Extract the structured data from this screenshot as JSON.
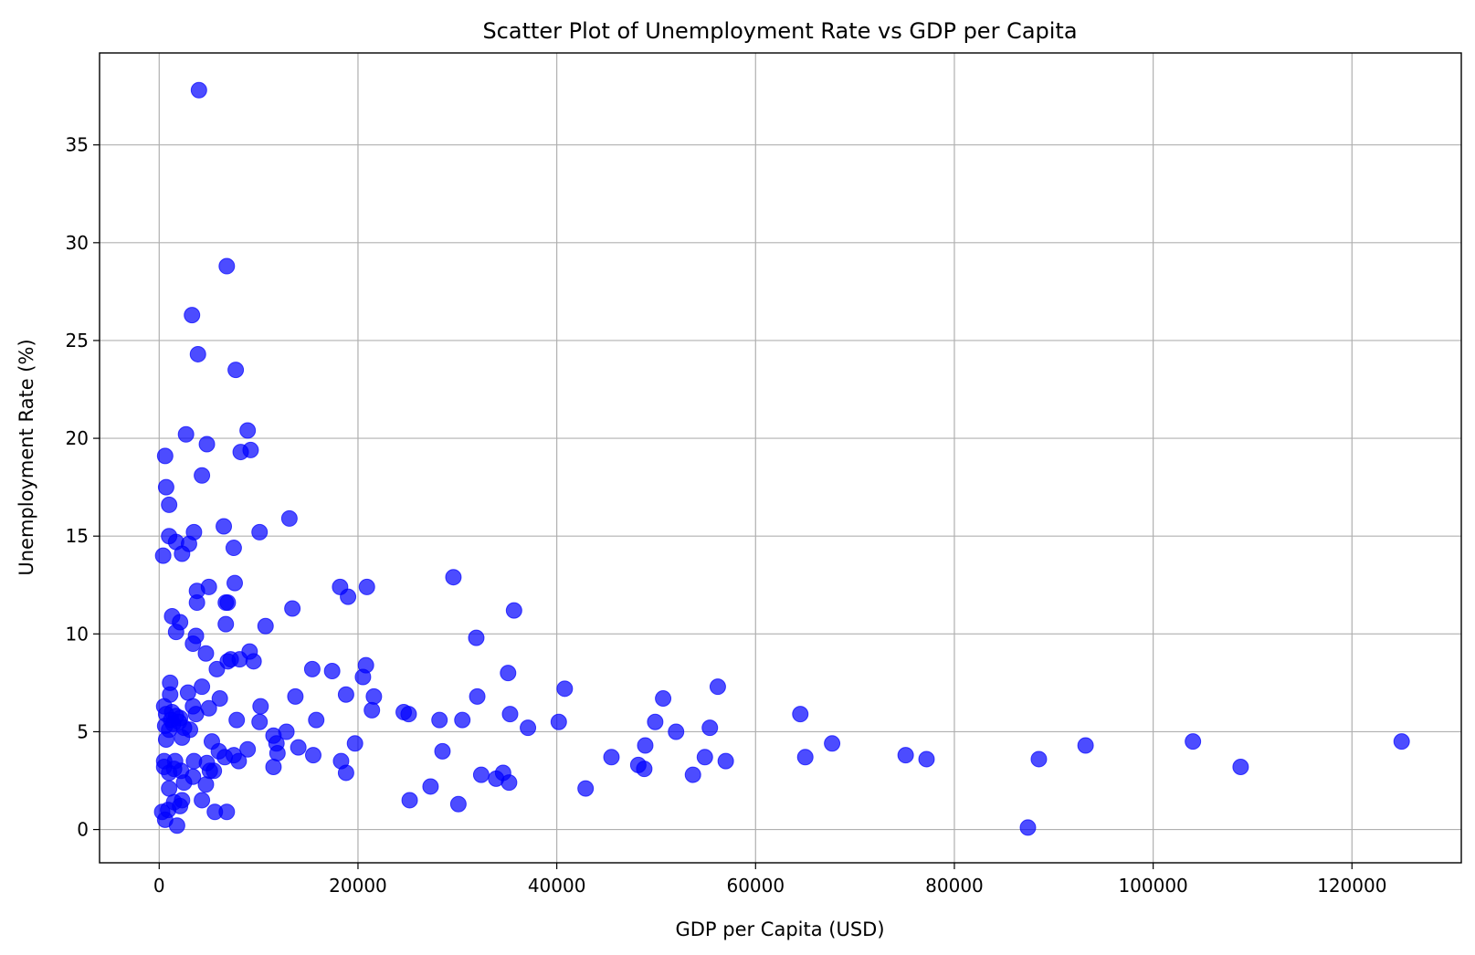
{
  "chart_data": {
    "type": "scatter",
    "title": "Scatter Plot of Unemployment Rate vs GDP per Capita",
    "xlabel": "GDP per Capita (USD)",
    "ylabel": "Unemployment Rate (%)",
    "xlim": [
      -6000,
      131000
    ],
    "ylim": [
      -1.7,
      39.7
    ],
    "x_ticks": [
      0,
      20000,
      40000,
      60000,
      80000,
      100000,
      120000
    ],
    "x_tick_labels": [
      "0",
      "20000",
      "40000",
      "60000",
      "80000",
      "100000",
      "120000"
    ],
    "y_ticks": [
      0,
      5,
      10,
      15,
      20,
      25,
      30,
      35
    ],
    "y_tick_labels": [
      "0",
      "5",
      "10",
      "15",
      "20",
      "25",
      "30",
      "35"
    ],
    "grid": true,
    "marker_color": "#0000ff",
    "marker_alpha": 0.7,
    "points": [
      [
        4000,
        37.8
      ],
      [
        6800,
        28.8
      ],
      [
        3300,
        26.3
      ],
      [
        3900,
        24.3
      ],
      [
        7700,
        23.5
      ],
      [
        8900,
        20.4
      ],
      [
        2700,
        20.2
      ],
      [
        4800,
        19.7
      ],
      [
        9200,
        19.4
      ],
      [
        8200,
        19.3
      ],
      [
        600,
        19.1
      ],
      [
        4300,
        18.1
      ],
      [
        700,
        17.5
      ],
      [
        1000,
        16.6
      ],
      [
        13100,
        15.9
      ],
      [
        6500,
        15.5
      ],
      [
        3500,
        15.2
      ],
      [
        10100,
        15.2
      ],
      [
        1000,
        15.0
      ],
      [
        1700,
        14.7
      ],
      [
        3000,
        14.6
      ],
      [
        7500,
        14.4
      ],
      [
        400,
        14.0
      ],
      [
        2300,
        14.1
      ],
      [
        7600,
        12.6
      ],
      [
        5000,
        12.4
      ],
      [
        18200,
        12.4
      ],
      [
        20900,
        12.4
      ],
      [
        3800,
        12.2
      ],
      [
        29600,
        12.9
      ],
      [
        19000,
        11.9
      ],
      [
        6700,
        11.6
      ],
      [
        6900,
        11.6
      ],
      [
        3800,
        11.6
      ],
      [
        13400,
        11.3
      ],
      [
        35700,
        11.2
      ],
      [
        1300,
        10.9
      ],
      [
        2100,
        10.6
      ],
      [
        6700,
        10.5
      ],
      [
        10700,
        10.4
      ],
      [
        1700,
        10.1
      ],
      [
        3700,
        9.9
      ],
      [
        31900,
        9.8
      ],
      [
        3400,
        9.5
      ],
      [
        9100,
        9.1
      ],
      [
        4700,
        9.0
      ],
      [
        6900,
        8.6
      ],
      [
        7200,
        8.7
      ],
      [
        8100,
        8.7
      ],
      [
        9500,
        8.6
      ],
      [
        15400,
        8.2
      ],
      [
        17400,
        8.1
      ],
      [
        20800,
        8.4
      ],
      [
        20500,
        7.8
      ],
      [
        35100,
        8.0
      ],
      [
        5800,
        8.2
      ],
      [
        1100,
        7.5
      ],
      [
        4300,
        7.3
      ],
      [
        40800,
        7.2
      ],
      [
        56200,
        7.3
      ],
      [
        1100,
        6.9
      ],
      [
        2900,
        7.0
      ],
      [
        18800,
        6.9
      ],
      [
        13700,
        6.8
      ],
      [
        21600,
        6.8
      ],
      [
        32000,
        6.8
      ],
      [
        50700,
        6.7
      ],
      [
        6100,
        6.7
      ],
      [
        500,
        6.3
      ],
      [
        1300,
        6.0
      ],
      [
        3400,
        6.3
      ],
      [
        10200,
        6.3
      ],
      [
        21400,
        6.1
      ],
      [
        5000,
        6.2
      ],
      [
        24600,
        6.0
      ],
      [
        25100,
        5.9
      ],
      [
        35300,
        5.9
      ],
      [
        64500,
        5.9
      ],
      [
        3700,
        5.9
      ],
      [
        700,
        5.9
      ],
      [
        1700,
        5.8
      ],
      [
        1200,
        5.6
      ],
      [
        2100,
        5.7
      ],
      [
        7800,
        5.6
      ],
      [
        15800,
        5.6
      ],
      [
        28200,
        5.6
      ],
      [
        30500,
        5.6
      ],
      [
        49900,
        5.5
      ],
      [
        40200,
        5.5
      ],
      [
        10100,
        5.5
      ],
      [
        600,
        5.3
      ],
      [
        1000,
        5.1
      ],
      [
        1400,
        5.4
      ],
      [
        2000,
        5.5
      ],
      [
        2500,
        5.2
      ],
      [
        3100,
        5.1
      ],
      [
        37100,
        5.2
      ],
      [
        55400,
        5.2
      ],
      [
        12800,
        5.0
      ],
      [
        52000,
        5.0
      ],
      [
        11500,
        4.8
      ],
      [
        700,
        4.6
      ],
      [
        2300,
        4.7
      ],
      [
        5300,
        4.5
      ],
      [
        11800,
        4.4
      ],
      [
        19700,
        4.4
      ],
      [
        48900,
        4.3
      ],
      [
        67700,
        4.4
      ],
      [
        93200,
        4.3
      ],
      [
        104000,
        4.5
      ],
      [
        125000,
        4.5
      ],
      [
        14000,
        4.2
      ],
      [
        8900,
        4.1
      ],
      [
        28500,
        4.0
      ],
      [
        6000,
        4.0
      ],
      [
        11900,
        3.9
      ],
      [
        15500,
        3.8
      ],
      [
        7500,
        3.8
      ],
      [
        6600,
        3.7
      ],
      [
        45500,
        3.7
      ],
      [
        54900,
        3.7
      ],
      [
        65000,
        3.7
      ],
      [
        75100,
        3.8
      ],
      [
        77200,
        3.6
      ],
      [
        88500,
        3.6
      ],
      [
        500,
        3.5
      ],
      [
        1600,
        3.5
      ],
      [
        3500,
        3.5
      ],
      [
        4800,
        3.4
      ],
      [
        8000,
        3.5
      ],
      [
        18300,
        3.5
      ],
      [
        57000,
        3.5
      ],
      [
        48200,
        3.3
      ],
      [
        108800,
        3.2
      ],
      [
        11500,
        3.2
      ],
      [
        500,
        3.2
      ],
      [
        1000,
        2.9
      ],
      [
        1500,
        3.1
      ],
      [
        2200,
        3.0
      ],
      [
        3400,
        2.7
      ],
      [
        5100,
        3.0
      ],
      [
        5500,
        3.0
      ],
      [
        48800,
        3.1
      ],
      [
        18800,
        2.9
      ],
      [
        32400,
        2.8
      ],
      [
        53700,
        2.8
      ],
      [
        34600,
        2.9
      ],
      [
        33900,
        2.6
      ],
      [
        35200,
        2.4
      ],
      [
        2500,
        2.4
      ],
      [
        4700,
        2.3
      ],
      [
        27300,
        2.2
      ],
      [
        1000,
        2.1
      ],
      [
        42900,
        2.1
      ],
      [
        25200,
        1.5
      ],
      [
        4300,
        1.5
      ],
      [
        2300,
        1.5
      ],
      [
        1500,
        1.4
      ],
      [
        2100,
        1.2
      ],
      [
        30100,
        1.3
      ],
      [
        900,
        1.0
      ],
      [
        300,
        0.9
      ],
      [
        5600,
        0.9
      ],
      [
        6800,
        0.9
      ],
      [
        600,
        0.5
      ],
      [
        1800,
        0.2
      ],
      [
        87400,
        0.1
      ]
    ]
  }
}
